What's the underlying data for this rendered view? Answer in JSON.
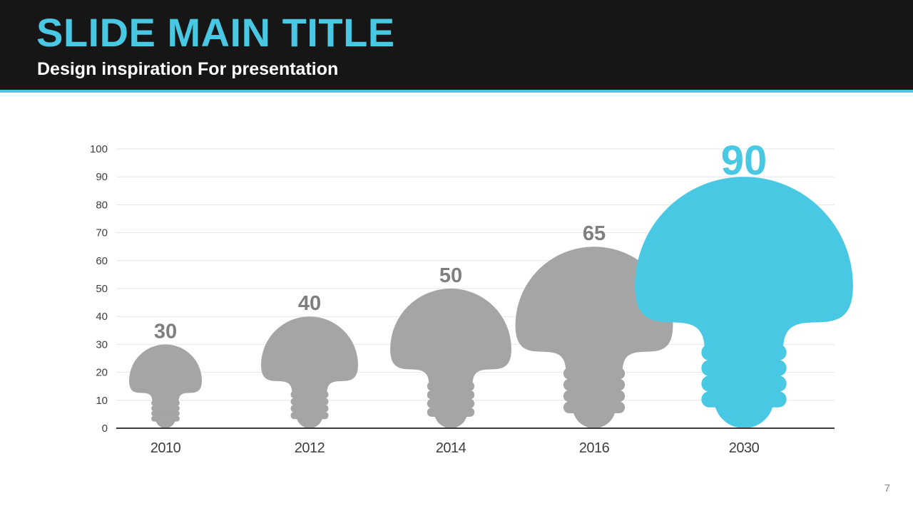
{
  "slide": {
    "title": "SLIDE MAIN TITLE",
    "subtitle": "Design inspiration For presentation",
    "page_number": "7"
  },
  "colors": {
    "accent": "#48c8e3",
    "header_bg": "#161616",
    "bulb_default": "#a5a5a5",
    "label_default": "#7f7f7f",
    "axis_text": "#3f3f3f",
    "gridline": "#e6e6e6",
    "baseline": "#3a3a3a"
  },
  "chart_data": {
    "type": "bar",
    "style": "lightbulb-shaped bars",
    "categories": [
      "2010",
      "2012",
      "2014",
      "2016",
      "2030"
    ],
    "values": [
      30,
      40,
      50,
      65,
      90
    ],
    "highlight_index": 4,
    "title": "",
    "xlabel": "",
    "ylabel": "",
    "ylim": [
      0,
      100
    ],
    "yticks": [
      0,
      10,
      20,
      30,
      40,
      50,
      60,
      70,
      80,
      90,
      100
    ],
    "grid": true,
    "legend": "none"
  }
}
